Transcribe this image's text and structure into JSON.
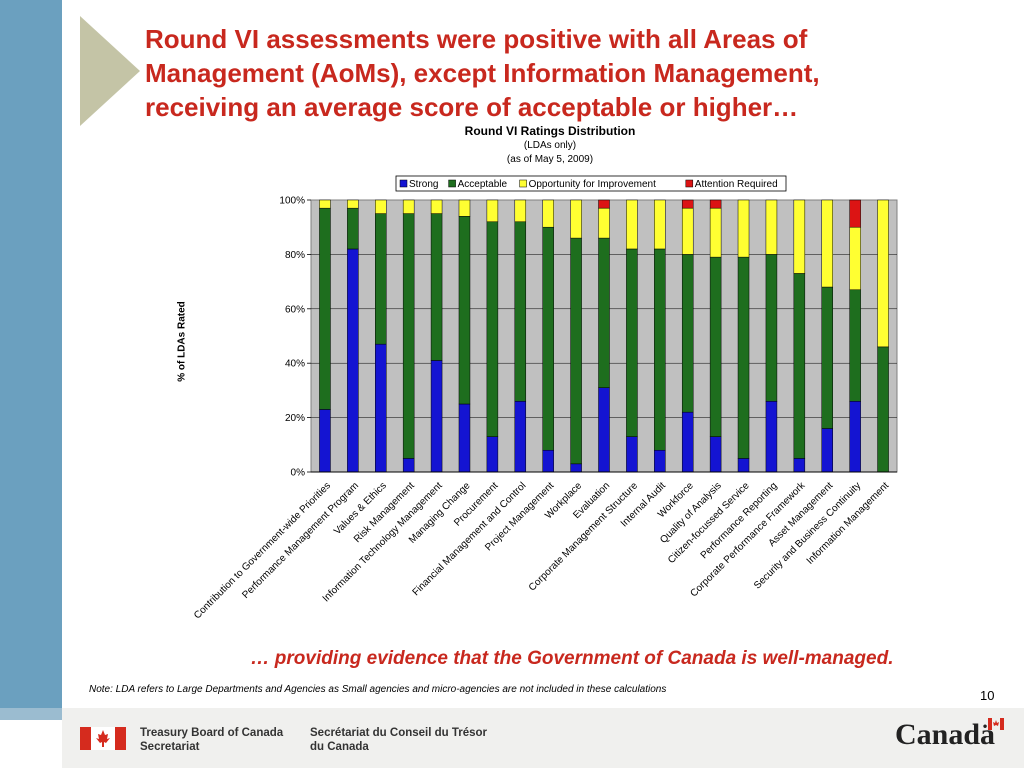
{
  "slide": {
    "title": "Round VI assessments were positive with all Areas of Management (AoMs), except Information Management, receiving an average score of acceptable or higher…",
    "conclusion": "… providing evidence that the Government of Canada is well-managed.",
    "footnote": "Note:  LDA refers to Large Departments and Agencies as Small agencies and micro-agencies are not included in these calculations",
    "page_number": "10"
  },
  "footer": {
    "en_line1": "Treasury Board of Canada",
    "en_line2": "Secretariat",
    "fr_line1": "Secrétariat du Conseil du Trésor",
    "fr_line2": "du Canada",
    "wordmark": "Canadä"
  },
  "colors": {
    "title_red": "#c8281e",
    "strong": "#1414d2",
    "acceptable": "#1e6e1e",
    "opportunity": "#ffff32",
    "attention": "#dc1414",
    "plot_bg": "#c0c0c0"
  },
  "chart_data": {
    "type": "bar",
    "stacked": true,
    "title": "Round VI Ratings Distribution",
    "subtitle": [
      "(LDAs only)",
      "(as of May 5, 2009)"
    ],
    "xlabel": "",
    "ylabel": "% of LDAs Rated",
    "ylim": [
      0,
      100
    ],
    "yticks": [
      "0%",
      "20%",
      "40%",
      "60%",
      "80%",
      "100%"
    ],
    "legend_position": "top",
    "grid": true,
    "categories": [
      "Contribution to Government-wide Priorities",
      "Performance Management Program",
      "Values & Ethics",
      "Risk Management",
      "Information Technology Management",
      "Managing Change",
      "Procurement",
      "Financial Management and Control",
      "Project Management",
      "Workplace",
      "Evaluation",
      "Corporate Management Structure",
      "Internal Audit",
      "Workforce",
      "Quality of Analysis",
      "Citizen-focussed Service",
      "Performance Reporting",
      "Corporate Performance Framework",
      "Asset Management",
      "Security and Business Continuity",
      "Information Management"
    ],
    "series": [
      {
        "name": "Strong",
        "values": [
          23,
          82,
          47,
          5,
          41,
          25,
          13,
          26,
          8,
          3,
          31,
          13,
          8,
          22,
          13,
          5,
          26,
          5,
          16,
          26,
          0
        ]
      },
      {
        "name": "Acceptable",
        "values": [
          74,
          15,
          48,
          90,
          54,
          69,
          79,
          66,
          82,
          83,
          55,
          69,
          74,
          58,
          66,
          74,
          54,
          68,
          52,
          41,
          46
        ]
      },
      {
        "name": "Opportunity for Improvement",
        "values": [
          3,
          3,
          5,
          5,
          5,
          6,
          8,
          8,
          10,
          14,
          11,
          18,
          18,
          17,
          18,
          21,
          20,
          27,
          32,
          23,
          54
        ]
      },
      {
        "name": "Attention Required",
        "values": [
          0,
          0,
          0,
          0,
          0,
          0,
          0,
          0,
          0,
          0,
          3,
          0,
          0,
          3,
          3,
          0,
          0,
          0,
          0,
          10,
          0
        ]
      }
    ]
  }
}
